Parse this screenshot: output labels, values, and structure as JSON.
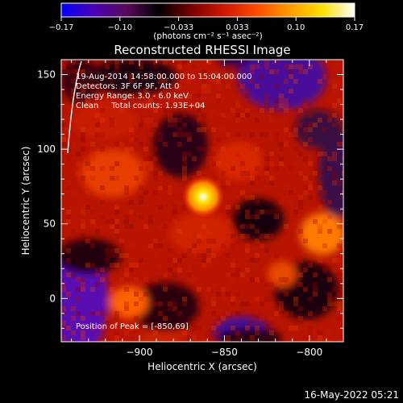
{
  "colorbar": {
    "tick_labels": [
      "-0.17",
      "-0.10",
      "-0.033",
      "0.033",
      "0.10",
      "0.17"
    ],
    "unit_label": "(photons cm⁻² s⁻¹ asec⁻²)",
    "colors": [
      "#0000ff",
      "#4b00b4",
      "#5a0a5a",
      "#000000",
      "#7a0000",
      "#d01800",
      "#ff4a00",
      "#ff9a00",
      "#ffe000",
      "#ffffff"
    ]
  },
  "title": "Reconstructed RHESSI Image",
  "info": {
    "time": "19-Aug-2014 14:58:00.000 to 15:04:00.000",
    "detectors": "Detectors: 3F 6F 9F, Att 0",
    "energy": "Energy Range: 3.0 - 6.0 keV",
    "method": "Clean     Total counts: 1.93E+04",
    "peak": "Position of Peak = [-850,69]"
  },
  "timestamp": "16-May-2022 05:21",
  "chart_data": {
    "type": "heatmap",
    "title": "Reconstructed RHESSI Image",
    "xlabel": "Heliocentric X (arcsec)",
    "ylabel": "Heliocentric Y (arcsec)",
    "xlim": [
      -946,
      -780
    ],
    "ylim": [
      -29,
      160
    ],
    "x_ticks": [
      -900,
      -850,
      -800
    ],
    "x_tick_labels": [
      "−900",
      "−850",
      "−800"
    ],
    "y_ticks": [
      0,
      50,
      100,
      150
    ],
    "y_tick_labels": [
      "0",
      "50",
      "100",
      "150"
    ],
    "color_range": [
      -0.17,
      0.17
    ],
    "peak": [
      -850,
      69
    ],
    "limb_color": "#ffffff"
  }
}
